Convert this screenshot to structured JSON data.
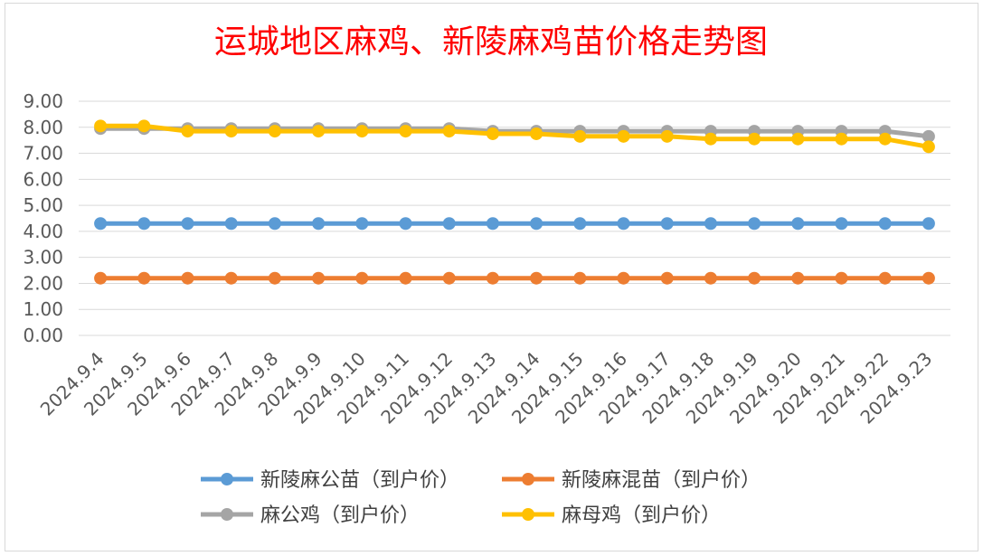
{
  "chart_data": {
    "type": "line",
    "title": "运城地区麻鸡、新陵麻鸡苗价格走势图",
    "xlabel": "",
    "ylabel": "",
    "ylim": [
      0,
      9
    ],
    "yticks": [
      "0.00",
      "1.00",
      "2.00",
      "3.00",
      "4.00",
      "5.00",
      "6.00",
      "7.00",
      "8.00",
      "9.00"
    ],
    "grid": true,
    "legend_position": "bottom",
    "categories": [
      "2024.9.4",
      "2024.9.5",
      "2024.9.6",
      "2024.9.7",
      "2024.9.8",
      "2024.9.9",
      "2024.9.10",
      "2024.9.11",
      "2024.9.12",
      "2024.9.13",
      "2024.9.14",
      "2024.9.15",
      "2024.9.16",
      "2024.9.17",
      "2024.9.18",
      "2024.9.19",
      "2024.9.20",
      "2024.9.21",
      "2024.9.22",
      "2024.9.23"
    ],
    "series": [
      {
        "name": "新陵麻公苗（到户价）",
        "color": "#5b9bd5",
        "values": [
          4.3,
          4.3,
          4.3,
          4.3,
          4.3,
          4.3,
          4.3,
          4.3,
          4.3,
          4.3,
          4.3,
          4.3,
          4.3,
          4.3,
          4.3,
          4.3,
          4.3,
          4.3,
          4.3,
          4.3
        ]
      },
      {
        "name": "新陵麻混苗（到户价）",
        "color": "#ed7d31",
        "values": [
          2.2,
          2.2,
          2.2,
          2.2,
          2.2,
          2.2,
          2.2,
          2.2,
          2.2,
          2.2,
          2.2,
          2.2,
          2.2,
          2.2,
          2.2,
          2.2,
          2.2,
          2.2,
          2.2,
          2.2
        ]
      },
      {
        "name": "麻公鸡（到户价）",
        "color": "#a5a5a5",
        "values": [
          7.95,
          7.95,
          7.95,
          7.95,
          7.95,
          7.95,
          7.95,
          7.95,
          7.95,
          7.85,
          7.85,
          7.85,
          7.85,
          7.85,
          7.85,
          7.85,
          7.85,
          7.85,
          7.85,
          7.65
        ]
      },
      {
        "name": "麻母鸡（到户价）",
        "color": "#ffc000",
        "values": [
          8.05,
          8.05,
          7.85,
          7.85,
          7.85,
          7.85,
          7.85,
          7.85,
          7.85,
          7.75,
          7.75,
          7.65,
          7.65,
          7.65,
          7.55,
          7.55,
          7.55,
          7.55,
          7.55,
          7.25
        ]
      }
    ]
  }
}
